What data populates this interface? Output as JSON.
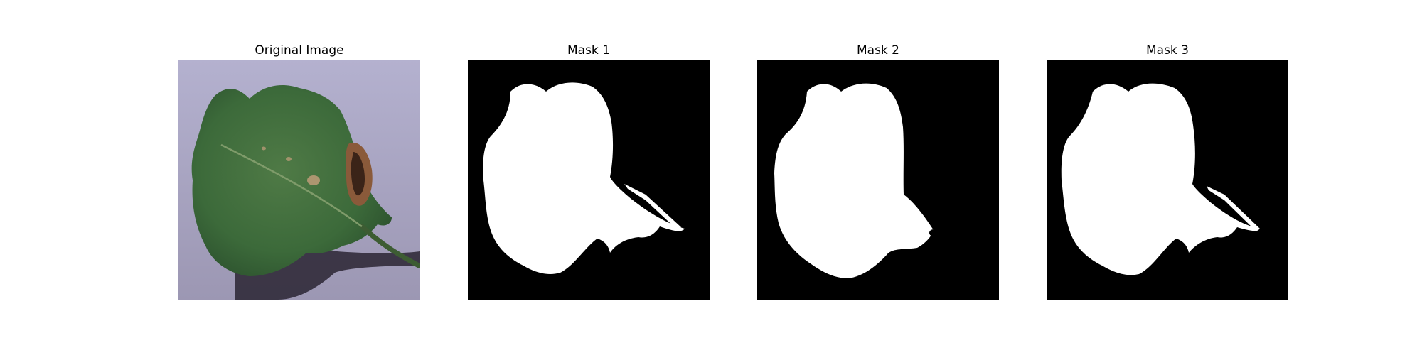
{
  "figure": {
    "panels": [
      {
        "title": "Original Image",
        "kind": "photo"
      },
      {
        "title": "Mask 1",
        "kind": "mask"
      },
      {
        "title": "Mask 2",
        "kind": "mask"
      },
      {
        "title": "Mask 3",
        "kind": "mask"
      }
    ],
    "colors": {
      "background_photo": "#a9a3c1",
      "leaf_green": "#3e6b3a",
      "lesion_brown": "#7a4a30",
      "mask_background": "#000000",
      "mask_foreground": "#ffffff"
    }
  }
}
